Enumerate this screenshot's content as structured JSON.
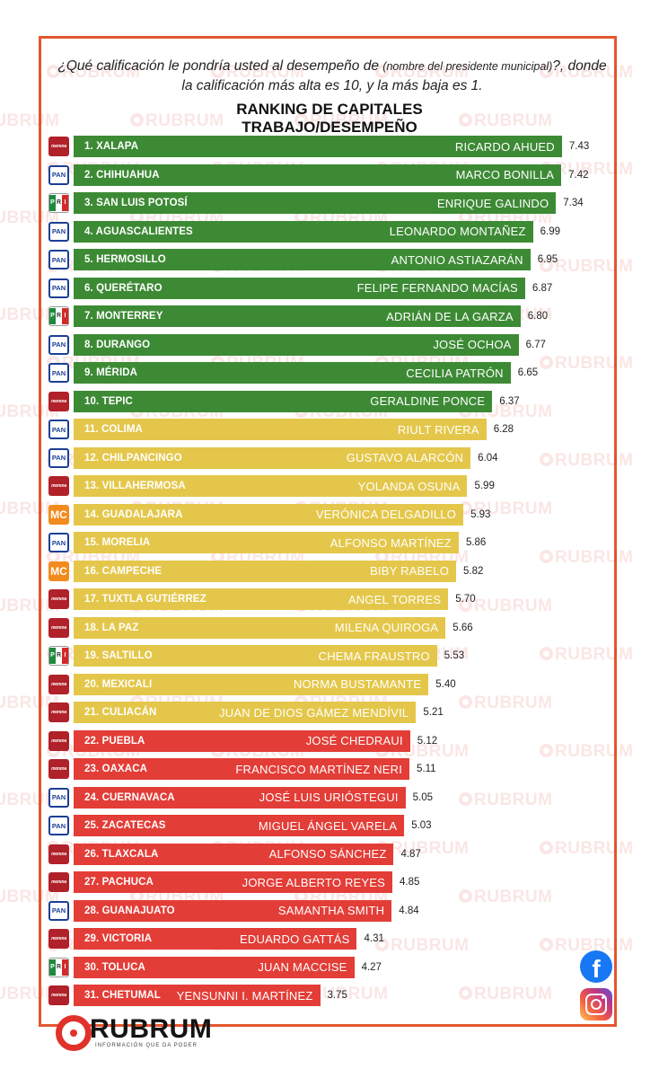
{
  "header": {
    "question_part1": "¿Qué calificación le pondría usted al desempeño de",
    "question_small": "(nombre del presidente municipal)",
    "question_part2": "?, donde la calificación más alta es 10, y la más baja es 1."
  },
  "title": {
    "line1": "RANKING DE CAPITALES",
    "line2": "TRABAJO/DESEMPEÑO"
  },
  "parties": {
    "morena": "morena",
    "pan": "PAN",
    "pri": [
      "P",
      "R",
      "I"
    ],
    "mc": "MC"
  },
  "colors": {
    "green": "#3d8a35",
    "yellow": "#e4c74a",
    "red": "#e33d37",
    "frame": "#e4572e"
  },
  "watermark_text": "RUBRUM",
  "logo": {
    "brand": "RUBRUM",
    "tagline": "INFORMACIÓN QUE DA PODER"
  },
  "social": {
    "facebook": "f"
  },
  "chart_data": {
    "type": "bar",
    "orientation": "horizontal",
    "title": "RANKING DE CAPITALES TRABAJO/DESEMPEÑO",
    "xlim": [
      0,
      10
    ],
    "rows": [
      {
        "city": "1. XALAPA",
        "mayor": "RICARDO AHUED",
        "value": 7.43,
        "value_label": "7.43",
        "party": "morena",
        "color": "green"
      },
      {
        "city": "2. CHIHUAHUA",
        "mayor": "MARCO BONILLA",
        "value": 7.42,
        "value_label": "7.42",
        "party": "pan",
        "color": "green"
      },
      {
        "city": "3. SAN LUIS POTOSÍ",
        "mayor": "ENRIQUE GALINDO",
        "value": 7.34,
        "value_label": "7.34",
        "party": "pri",
        "color": "green"
      },
      {
        "city": "4. AGUASCALIENTES",
        "mayor": "LEONARDO MONTAÑEZ",
        "value": 6.99,
        "value_label": "6.99",
        "party": "pan",
        "color": "green"
      },
      {
        "city": "5. HERMOSILLO",
        "mayor": "ANTONIO ASTIAZARÁN",
        "value": 6.95,
        "value_label": "6.95",
        "party": "pan",
        "color": "green"
      },
      {
        "city": "6. QUERÉTARO",
        "mayor": "FELIPE FERNANDO MACÍAS",
        "value": 6.87,
        "value_label": "6.87",
        "party": "pan",
        "color": "green"
      },
      {
        "city": "7. MONTERREY",
        "mayor": "ADRIÁN DE LA GARZA",
        "value": 6.8,
        "value_label": "6.80",
        "party": "pri",
        "color": "green"
      },
      {
        "city": "8. DURANGO",
        "mayor": "JOSÉ OCHOA",
        "value": 6.77,
        "value_label": "6.77",
        "party": "pan",
        "color": "green"
      },
      {
        "city": "9. MÉRIDA",
        "mayor": "CECILIA PATRÓN",
        "value": 6.65,
        "value_label": "6.65",
        "party": "pan",
        "color": "green"
      },
      {
        "city": "10. TEPIC",
        "mayor": "GERALDINE PONCE",
        "value": 6.37,
        "value_label": "6.37",
        "party": "morena",
        "color": "green"
      },
      {
        "city": "11. COLIMA",
        "mayor": "RIULT RIVERA",
        "value": 6.28,
        "value_label": "6.28",
        "party": "pan",
        "color": "yellow"
      },
      {
        "city": "12. CHILPANCINGO",
        "mayor": "GUSTAVO ALARCÓN",
        "value": 6.04,
        "value_label": "6.04",
        "party": "pan",
        "color": "yellow"
      },
      {
        "city": "13. VILLAHERMOSA",
        "mayor": "YOLANDA OSUNA",
        "value": 5.99,
        "value_label": "5.99",
        "party": "morena",
        "color": "yellow"
      },
      {
        "city": "14. GUADALAJARA",
        "mayor": "VERÓNICA DELGADILLO",
        "value": 5.93,
        "value_label": "5.93",
        "party": "mc",
        "color": "yellow"
      },
      {
        "city": "15. MORELIA",
        "mayor": "ALFONSO MARTÍNEZ",
        "value": 5.86,
        "value_label": "5.86",
        "party": "pan",
        "color": "yellow"
      },
      {
        "city": "16. CAMPECHE",
        "mayor": "BIBY RABELO",
        "value": 5.82,
        "value_label": "5.82",
        "party": "mc",
        "color": "yellow"
      },
      {
        "city": "17. TUXTLA GUTIÉRREZ",
        "mayor": "ANGEL TORRES",
        "value": 5.7,
        "value_label": "5.70",
        "party": "morena",
        "color": "yellow"
      },
      {
        "city": "18. LA PAZ",
        "mayor": "MILENA QUIROGA",
        "value": 5.66,
        "value_label": "5.66",
        "party": "morena",
        "color": "yellow"
      },
      {
        "city": "19. SALTILLO",
        "mayor": "CHEMA FRAUSTRO",
        "value": 5.53,
        "value_label": "5.53",
        "party": "pri",
        "color": "yellow"
      },
      {
        "city": "20. MEXICALI",
        "mayor": "NORMA BUSTAMANTE",
        "value": 5.4,
        "value_label": "5.40",
        "party": "morena",
        "color": "yellow"
      },
      {
        "city": "21. CULIACÁN",
        "mayor": "JUAN DE DIOS GÁMEZ MENDÍVIL",
        "value": 5.21,
        "value_label": "5.21",
        "party": "morena",
        "color": "yellow"
      },
      {
        "city": "22. PUEBLA",
        "mayor": "JOSÉ CHEDRAUI",
        "value": 5.12,
        "value_label": "5.12",
        "party": "morena",
        "color": "red"
      },
      {
        "city": "23. OAXACA",
        "mayor": "FRANCISCO MARTÍNEZ NERI",
        "value": 5.11,
        "value_label": "5.11",
        "party": "morena",
        "color": "red"
      },
      {
        "city": "24. CUERNAVACA",
        "mayor": "JOSÉ LUIS URIÓSTEGUI",
        "value": 5.05,
        "value_label": "5.05",
        "party": "pan",
        "color": "red"
      },
      {
        "city": "25. ZACATECAS",
        "mayor": "MIGUEL ÁNGEL VARELA",
        "value": 5.03,
        "value_label": "5.03",
        "party": "pan",
        "color": "red"
      },
      {
        "city": "26. TLAXCALA",
        "mayor": "ALFONSO SÁNCHEZ",
        "value": 4.87,
        "value_label": "4.87",
        "party": "morena",
        "color": "red"
      },
      {
        "city": "27. PACHUCA",
        "mayor": "JORGE ALBERTO REYES",
        "value": 4.85,
        "value_label": "4.85",
        "party": "morena",
        "color": "red"
      },
      {
        "city": "28. GUANAJUATO",
        "mayor": "SAMANTHA SMITH",
        "value": 4.84,
        "value_label": "4.84",
        "party": "pan",
        "color": "red"
      },
      {
        "city": "29. VICTORIA",
        "mayor": "EDUARDO GATTÁS",
        "value": 4.31,
        "value_label": "4.31",
        "party": "morena",
        "color": "red"
      },
      {
        "city": "30. TOLUCA",
        "mayor": "JUAN MACCISE",
        "value": 4.27,
        "value_label": "4.27",
        "party": "pri",
        "color": "red"
      },
      {
        "city": "31. CHETUMAL",
        "mayor": "YENSUNNI I. MARTÍNEZ",
        "value": 3.75,
        "value_label": "3.75",
        "party": "morena",
        "color": "red"
      }
    ]
  }
}
